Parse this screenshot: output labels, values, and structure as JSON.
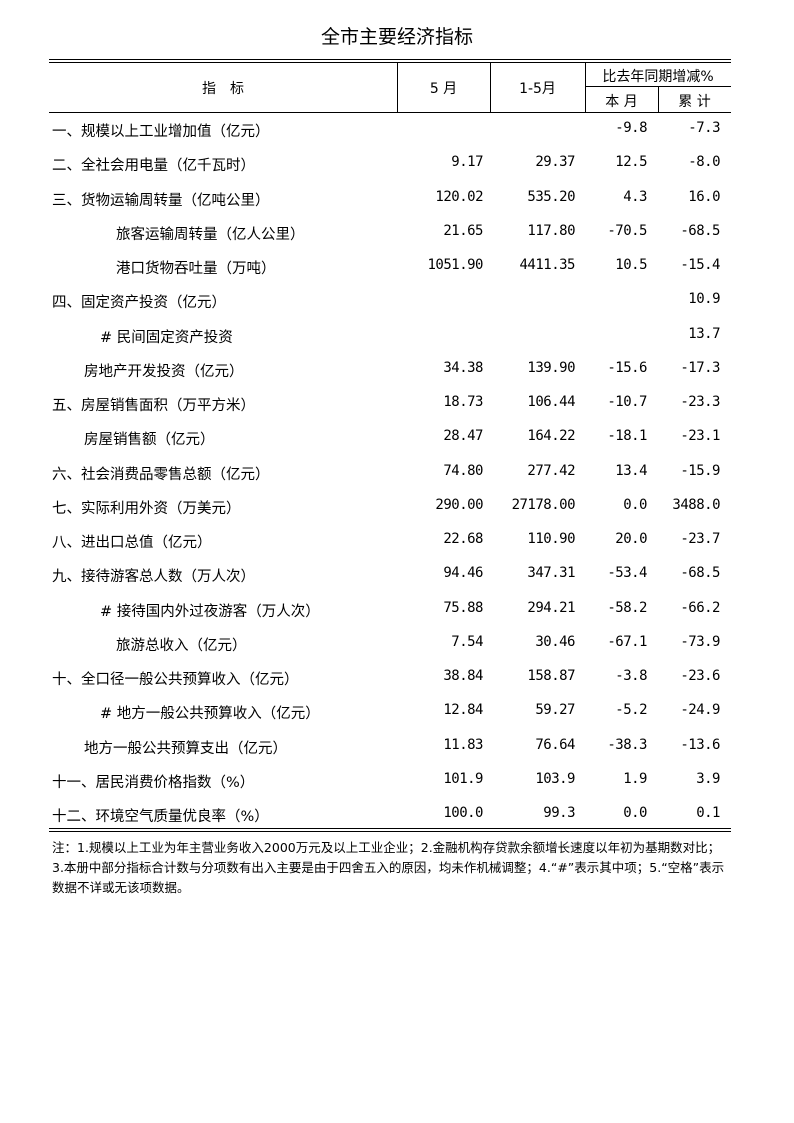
{
  "title": "全市主要经济指标",
  "header": {
    "indicator": "指　标",
    "may": "5 月",
    "jan_may": "1-5月",
    "yoy": "比去年同期增减%",
    "this_month": "本 月",
    "cumulative": "累 计"
  },
  "rows": [
    {
      "label": "一、规模以上工业增加值（亿元）",
      "indent": 0,
      "may": "",
      "jan_may": "",
      "this_month": "-9.8",
      "cumulative": "-7.3"
    },
    {
      "label": "二、全社会用电量（亿千瓦时）",
      "indent": 0,
      "may": "9.17",
      "jan_may": "29.37",
      "this_month": "12.5",
      "cumulative": "-8.0"
    },
    {
      "label": "三、货物运输周转量（亿吨公里）",
      "indent": 0,
      "may": "120.02",
      "jan_may": "535.20",
      "this_month": "4.3",
      "cumulative": "16.0"
    },
    {
      "label": "旅客运输周转量（亿人公里）",
      "indent": 3,
      "may": "21.65",
      "jan_may": "117.80",
      "this_month": "-70.5",
      "cumulative": "-68.5"
    },
    {
      "label": "港口货物吞吐量（万吨）",
      "indent": 3,
      "may": "1051.90",
      "jan_may": "4411.35",
      "this_month": "10.5",
      "cumulative": "-15.4"
    },
    {
      "label": "四、固定资产投资（亿元）",
      "indent": 0,
      "may": "",
      "jan_may": "",
      "this_month": "",
      "cumulative": "10.9"
    },
    {
      "label": "# 民间固定资产投资",
      "indent": 2,
      "may": "",
      "jan_may": "",
      "this_month": "",
      "cumulative": "13.7"
    },
    {
      "label": "房地产开发投资（亿元）",
      "indent": 1,
      "may": "34.38",
      "jan_may": "139.90",
      "this_month": "-15.6",
      "cumulative": "-17.3"
    },
    {
      "label": "五、房屋销售面积（万平方米）",
      "indent": 0,
      "may": "18.73",
      "jan_may": "106.44",
      "this_month": "-10.7",
      "cumulative": "-23.3"
    },
    {
      "label": "房屋销售额（亿元）",
      "indent": 1,
      "may": "28.47",
      "jan_may": "164.22",
      "this_month": "-18.1",
      "cumulative": "-23.1"
    },
    {
      "label": "六、社会消费品零售总额（亿元）",
      "indent": 0,
      "may": "74.80",
      "jan_may": "277.42",
      "this_month": "13.4",
      "cumulative": "-15.9"
    },
    {
      "label": "七、实际利用外资（万美元）",
      "indent": 0,
      "may": "290.00",
      "jan_may": "27178.00",
      "this_month": "0.0",
      "cumulative": "3488.0"
    },
    {
      "label": "八、进出口总值（亿元）",
      "indent": 0,
      "may": "22.68",
      "jan_may": "110.90",
      "this_month": "20.0",
      "cumulative": "-23.7"
    },
    {
      "label": "九、接待游客总人数（万人次）",
      "indent": 0,
      "may": "94.46",
      "jan_may": "347.31",
      "this_month": "-53.4",
      "cumulative": "-68.5"
    },
    {
      "label": "# 接待国内外过夜游客（万人次）",
      "indent": 2,
      "may": "75.88",
      "jan_may": "294.21",
      "this_month": "-58.2",
      "cumulative": "-66.2"
    },
    {
      "label": "旅游总收入（亿元）",
      "indent": 3,
      "may": "7.54",
      "jan_may": "30.46",
      "this_month": "-67.1",
      "cumulative": "-73.9"
    },
    {
      "label": "十、全口径一般公共预算收入（亿元）",
      "indent": 0,
      "may": "38.84",
      "jan_may": "158.87",
      "this_month": "-3.8",
      "cumulative": "-23.6"
    },
    {
      "label": "#  地方一般公共预算收入（亿元）",
      "indent": 2,
      "may": "12.84",
      "jan_may": "59.27",
      "this_month": "-5.2",
      "cumulative": "-24.9"
    },
    {
      "label": "地方一般公共预算支出（亿元）",
      "indent": 1,
      "may": "11.83",
      "jan_may": "76.64",
      "this_month": "-38.3",
      "cumulative": "-13.6"
    },
    {
      "label": "十一、居民消费价格指数（%）",
      "indent": 0,
      "may": "101.9",
      "jan_may": "103.9",
      "this_month": "1.9",
      "cumulative": "3.9"
    },
    {
      "label": "十二、环境空气质量优良率（%）",
      "indent": 0,
      "may": "100.0",
      "jan_may": "99.3",
      "this_month": "0.0",
      "cumulative": "0.1"
    }
  ],
  "note": "注：1.规模以上工业为年主营业务收入2000万元及以上工业企业；2.金融机构存贷款余额增长速度以年初为基期数对比；3.本册中部分指标合计数与分项数有出入主要是由于四舍五入的原因，均未作机械调整；4.“#”表示其中项；5.“空格”表示数据不详或无该项数据。"
}
